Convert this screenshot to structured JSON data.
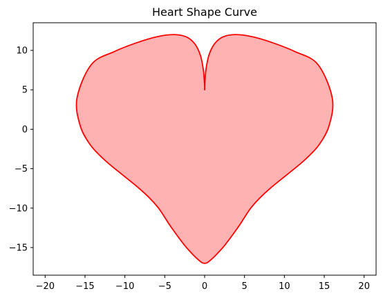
{
  "chart_data": {
    "type": "line",
    "title": "Heart Shape Curve",
    "xlabel": "",
    "ylabel": "",
    "xlim": [
      -21.5,
      21.5
    ],
    "ylim": [
      -18.5,
      13.5
    ],
    "x_ticks": [
      -20,
      -15,
      -10,
      -5,
      0,
      5,
      10,
      15,
      20
    ],
    "x_tick_labels": [
      "−20",
      "−15",
      "−10",
      "−5",
      "0",
      "5",
      "10",
      "15",
      "20"
    ],
    "y_ticks": [
      -15,
      -10,
      -5,
      0,
      5,
      10
    ],
    "y_tick_labels": [
      "−15",
      "−10",
      "−5",
      "0",
      "5",
      "10"
    ],
    "grid": false,
    "legend": "none",
    "series": [
      {
        "fill_color": "#ffb2b2",
        "line_color": "#ff0000",
        "x": [
          0.0,
          0.02,
          0.16,
          0.52,
          1.22,
          2.33,
          3.91,
          5.97,
          8.45,
          11.25,
          14.18,
          16.0,
          15.63,
          14.31,
          12.41,
          10.32,
          8.4,
          6.89,
          5.84,
          5.12,
          4.46,
          3.57,
          2.33,
          0.79,
          0.0,
          -0.79,
          -2.33,
          -3.57,
          -4.46,
          -5.12,
          -5.84,
          -6.89,
          -8.4,
          -10.32,
          -12.41,
          -14.31,
          -15.63,
          -16.0,
          -14.18,
          -11.25,
          -8.45,
          -5.97,
          -3.91,
          -2.33,
          -1.22,
          -0.52,
          -0.16,
          -0.02,
          0.0
        ],
        "y": [
          5.0,
          5.79,
          7.52,
          9.34,
          10.81,
          11.72,
          12.0,
          11.73,
          10.99,
          9.88,
          8.24,
          4.0,
          0.53,
          -2.02,
          -4.02,
          -5.76,
          -7.34,
          -8.74,
          -9.93,
          -10.98,
          -12.03,
          -13.3,
          -14.94,
          -16.55,
          -17.0,
          -16.55,
          -14.94,
          -13.3,
          -12.03,
          -10.98,
          -9.93,
          -8.74,
          -7.34,
          -5.76,
          -4.02,
          -2.02,
          0.53,
          4.0,
          8.24,
          9.88,
          10.99,
          11.73,
          12.0,
          11.72,
          10.81,
          9.34,
          7.52,
          5.79,
          5.0
        ]
      }
    ]
  }
}
